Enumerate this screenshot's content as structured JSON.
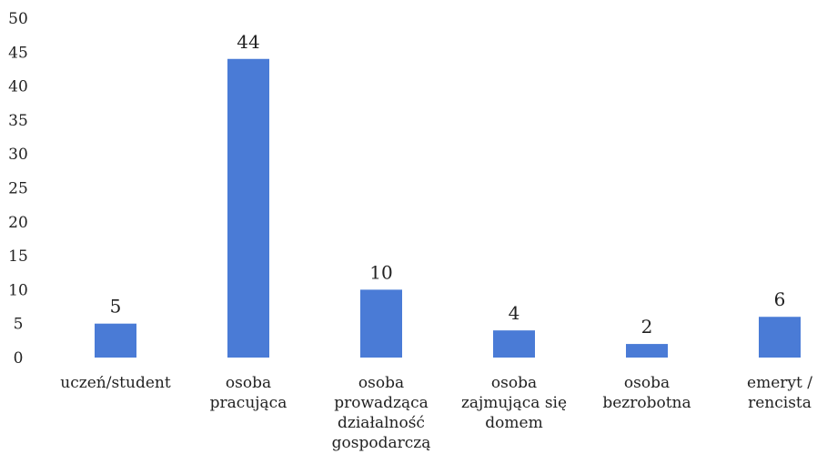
{
  "chart_data": {
    "type": "bar",
    "categories": [
      "uczeń/student",
      "osoba pracująca",
      "osoba prowadząca działalność gospodarczą",
      "osoba zajmująca się domem",
      "osoba bezrobotna",
      "emeryt / rencista"
    ],
    "values": [
      5,
      44,
      10,
      4,
      2,
      6
    ],
    "color": "#4a7bd6",
    "ylim": [
      0,
      50
    ],
    "yticks": [
      0,
      5,
      10,
      15,
      20,
      25,
      30,
      35,
      40,
      45,
      50
    ],
    "grid": false
  }
}
